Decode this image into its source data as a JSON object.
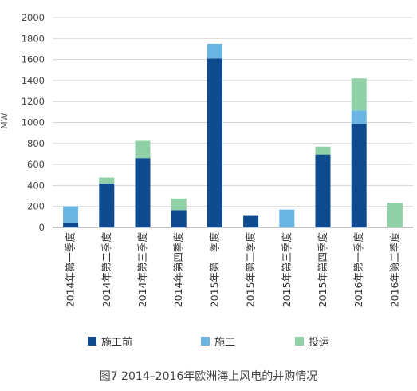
{
  "chart_data": {
    "type": "bar",
    "stacked": true,
    "ylabel": "MW",
    "xlabel": "",
    "ylim": [
      0,
      2000
    ],
    "yticks": [
      0,
      200,
      400,
      600,
      800,
      1000,
      1200,
      1400,
      1600,
      1800,
      2000
    ],
    "grid": "horizontal",
    "legend_position": "bottom",
    "categories": [
      "2014年第一季度",
      "2014年第二季度",
      "2014年第三季度",
      "2014年第四季度",
      "2015年第一季度",
      "2015年第二季度",
      "2015年第三季度",
      "2015年第四季度",
      "2016年第一季度",
      "2016年第二季度"
    ],
    "series": [
      {
        "name": "施工前",
        "color": "#0e4c8f",
        "values": [
          40,
          420,
          660,
          165,
          1610,
          110,
          0,
          695,
          985,
          0
        ]
      },
      {
        "name": "施工",
        "color": "#6ab4e2",
        "values": [
          160,
          0,
          0,
          0,
          140,
          0,
          170,
          0,
          130,
          0
        ]
      },
      {
        "name": "投运",
        "color": "#8fd0a6",
        "values": [
          0,
          55,
          165,
          110,
          0,
          0,
          0,
          75,
          305,
          235
        ]
      }
    ]
  },
  "caption": "图7  2014–2016年欧洲海上风电的并购情况"
}
